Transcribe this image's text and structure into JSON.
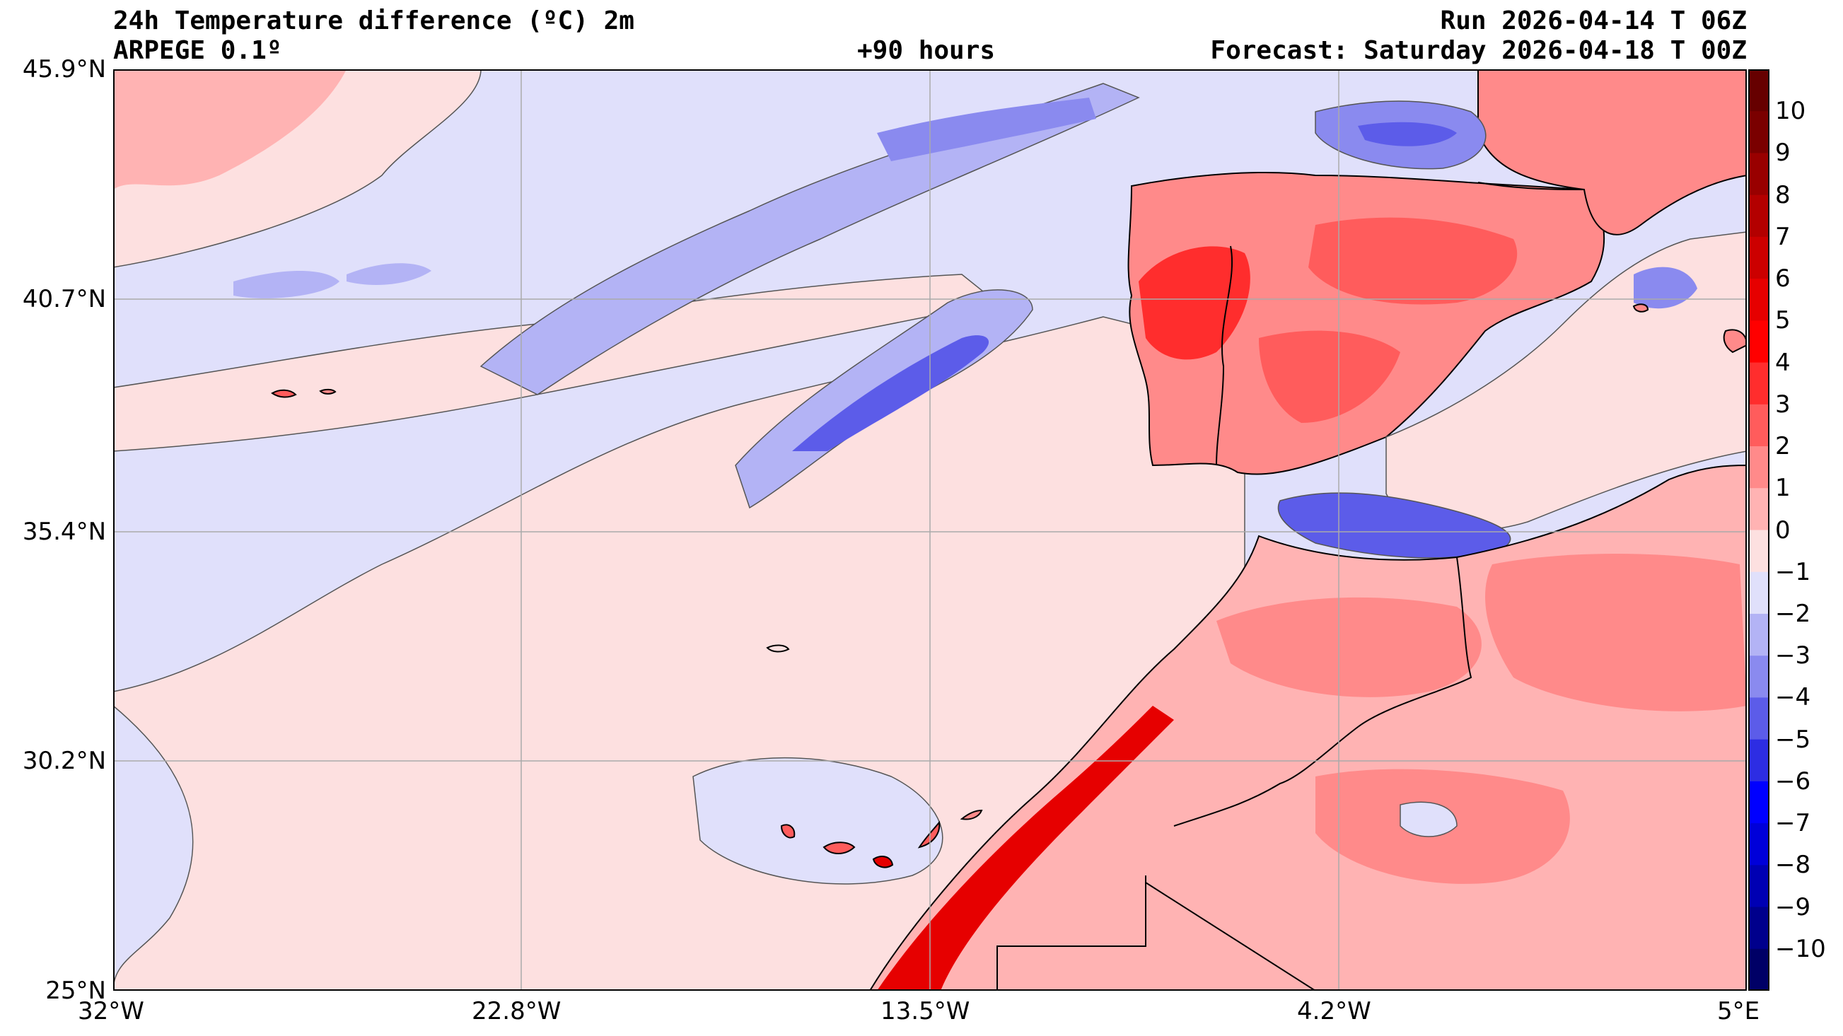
{
  "header": {
    "title": "24h Temperature difference (ºC) 2m",
    "model": "ARPEGE 0.1º",
    "lead_time": "+90 hours",
    "run": "Run 2026-04-14 T 06Z",
    "forecast": "Forecast: Saturday 2026-04-18 T 00Z"
  },
  "axes": {
    "lat_labels": [
      "45.9°N",
      "40.7°N",
      "35.4°N",
      "30.2°N",
      "25°N"
    ],
    "lon_labels": [
      "32°W",
      "22.8°W",
      "13.5°W",
      "4.2°W",
      "5°E"
    ]
  },
  "colorbar": {
    "labels": [
      "10",
      "9",
      "8",
      "7",
      "6",
      "5",
      "4",
      "3",
      "2",
      "1",
      "0",
      "−1",
      "−2",
      "−3",
      "−4",
      "−5",
      "−6",
      "−7",
      "−8",
      "−9",
      "−10"
    ],
    "colors": [
      "#7a0000",
      "#990000",
      "#b30000",
      "#cc0000",
      "#e60000",
      "#ff0000",
      "#ff2d2d",
      "#ff5c5c",
      "#ff8a8a",
      "#ffb3b3",
      "#fde0e0",
      "#e0e0fb",
      "#b3b3f5",
      "#8a8aef",
      "#5c5ce9",
      "#2d2de3",
      "#0000ff",
      "#0000d9",
      "#0000b3",
      "#00008c",
      "#000066"
    ],
    "lower_extend_color": "#00004d",
    "upper_extend_color": "#660000"
  },
  "map_colors": {
    "ocean_base": "#e0e0fb",
    "land_base": "#ffb3b3",
    "coast": "#000000",
    "isoline": "#555555",
    "grid": "#aaaaaa"
  }
}
